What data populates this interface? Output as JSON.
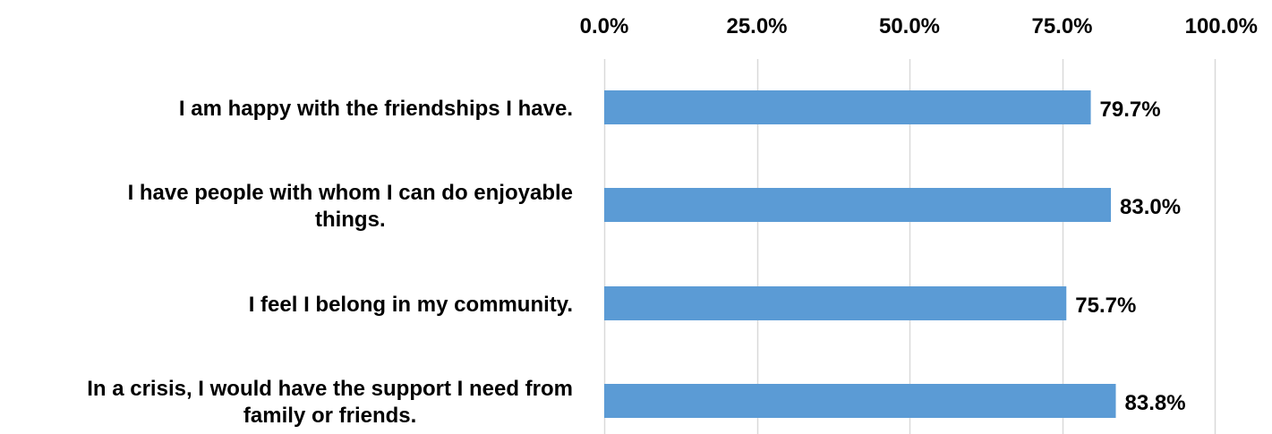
{
  "chart_data": {
    "type": "bar",
    "orientation": "horizontal",
    "categories": [
      "I am happy with the friendships I have.",
      "I have people with whom I can do enjoyable things.",
      "I feel I belong in my community.",
      "In a crisis, I would have the support I need from family or friends."
    ],
    "category_lines": [
      [
        "I am happy with the friendships I have."
      ],
      [
        "I have people with whom I can do enjoyable",
        "things."
      ],
      [
        "I feel I belong in my community."
      ],
      [
        "In a crisis, I would have the support I need from",
        "family or friends."
      ]
    ],
    "values": [
      79.7,
      83.0,
      75.7,
      83.8
    ],
    "data_labels": [
      "79.7%",
      "83.0%",
      "75.7%",
      "83.8%"
    ],
    "xlim": [
      0,
      100
    ],
    "ticks": [
      0,
      25,
      50,
      75,
      100
    ],
    "tick_labels": [
      "0.0%",
      "25.0%",
      "50.0%",
      "75.0%",
      "100.0%"
    ],
    "axis_position": "top",
    "grid": true,
    "legend": "none",
    "bar_color": "#5b9bd5",
    "grid_color": "#d9d9d9"
  }
}
